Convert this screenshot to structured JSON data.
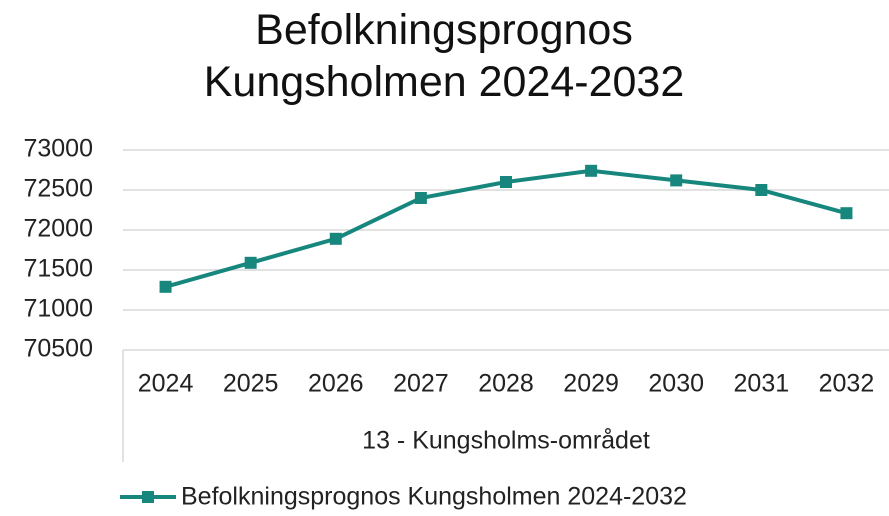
{
  "chart_data": {
    "type": "line",
    "title": "Befolkningsprognos Kungsholmen 2024-2032",
    "x_label": "13 - Kungsholms-området",
    "categories": [
      "2024",
      "2025",
      "2026",
      "2027",
      "2028",
      "2029",
      "2030",
      "2031",
      "2032"
    ],
    "series": [
      {
        "name": "Befolkningsprognos Kungsholmen 2024-2032",
        "color": "#17877e",
        "values": [
          71290,
          71590,
          71890,
          72400,
          72600,
          72740,
          72620,
          72500,
          72210
        ]
      }
    ],
    "ylim": [
      70500,
      73000
    ],
    "yticks": [
      70500,
      71000,
      71500,
      72000,
      72500,
      73000
    ],
    "grid": true,
    "legend": "bottom"
  }
}
